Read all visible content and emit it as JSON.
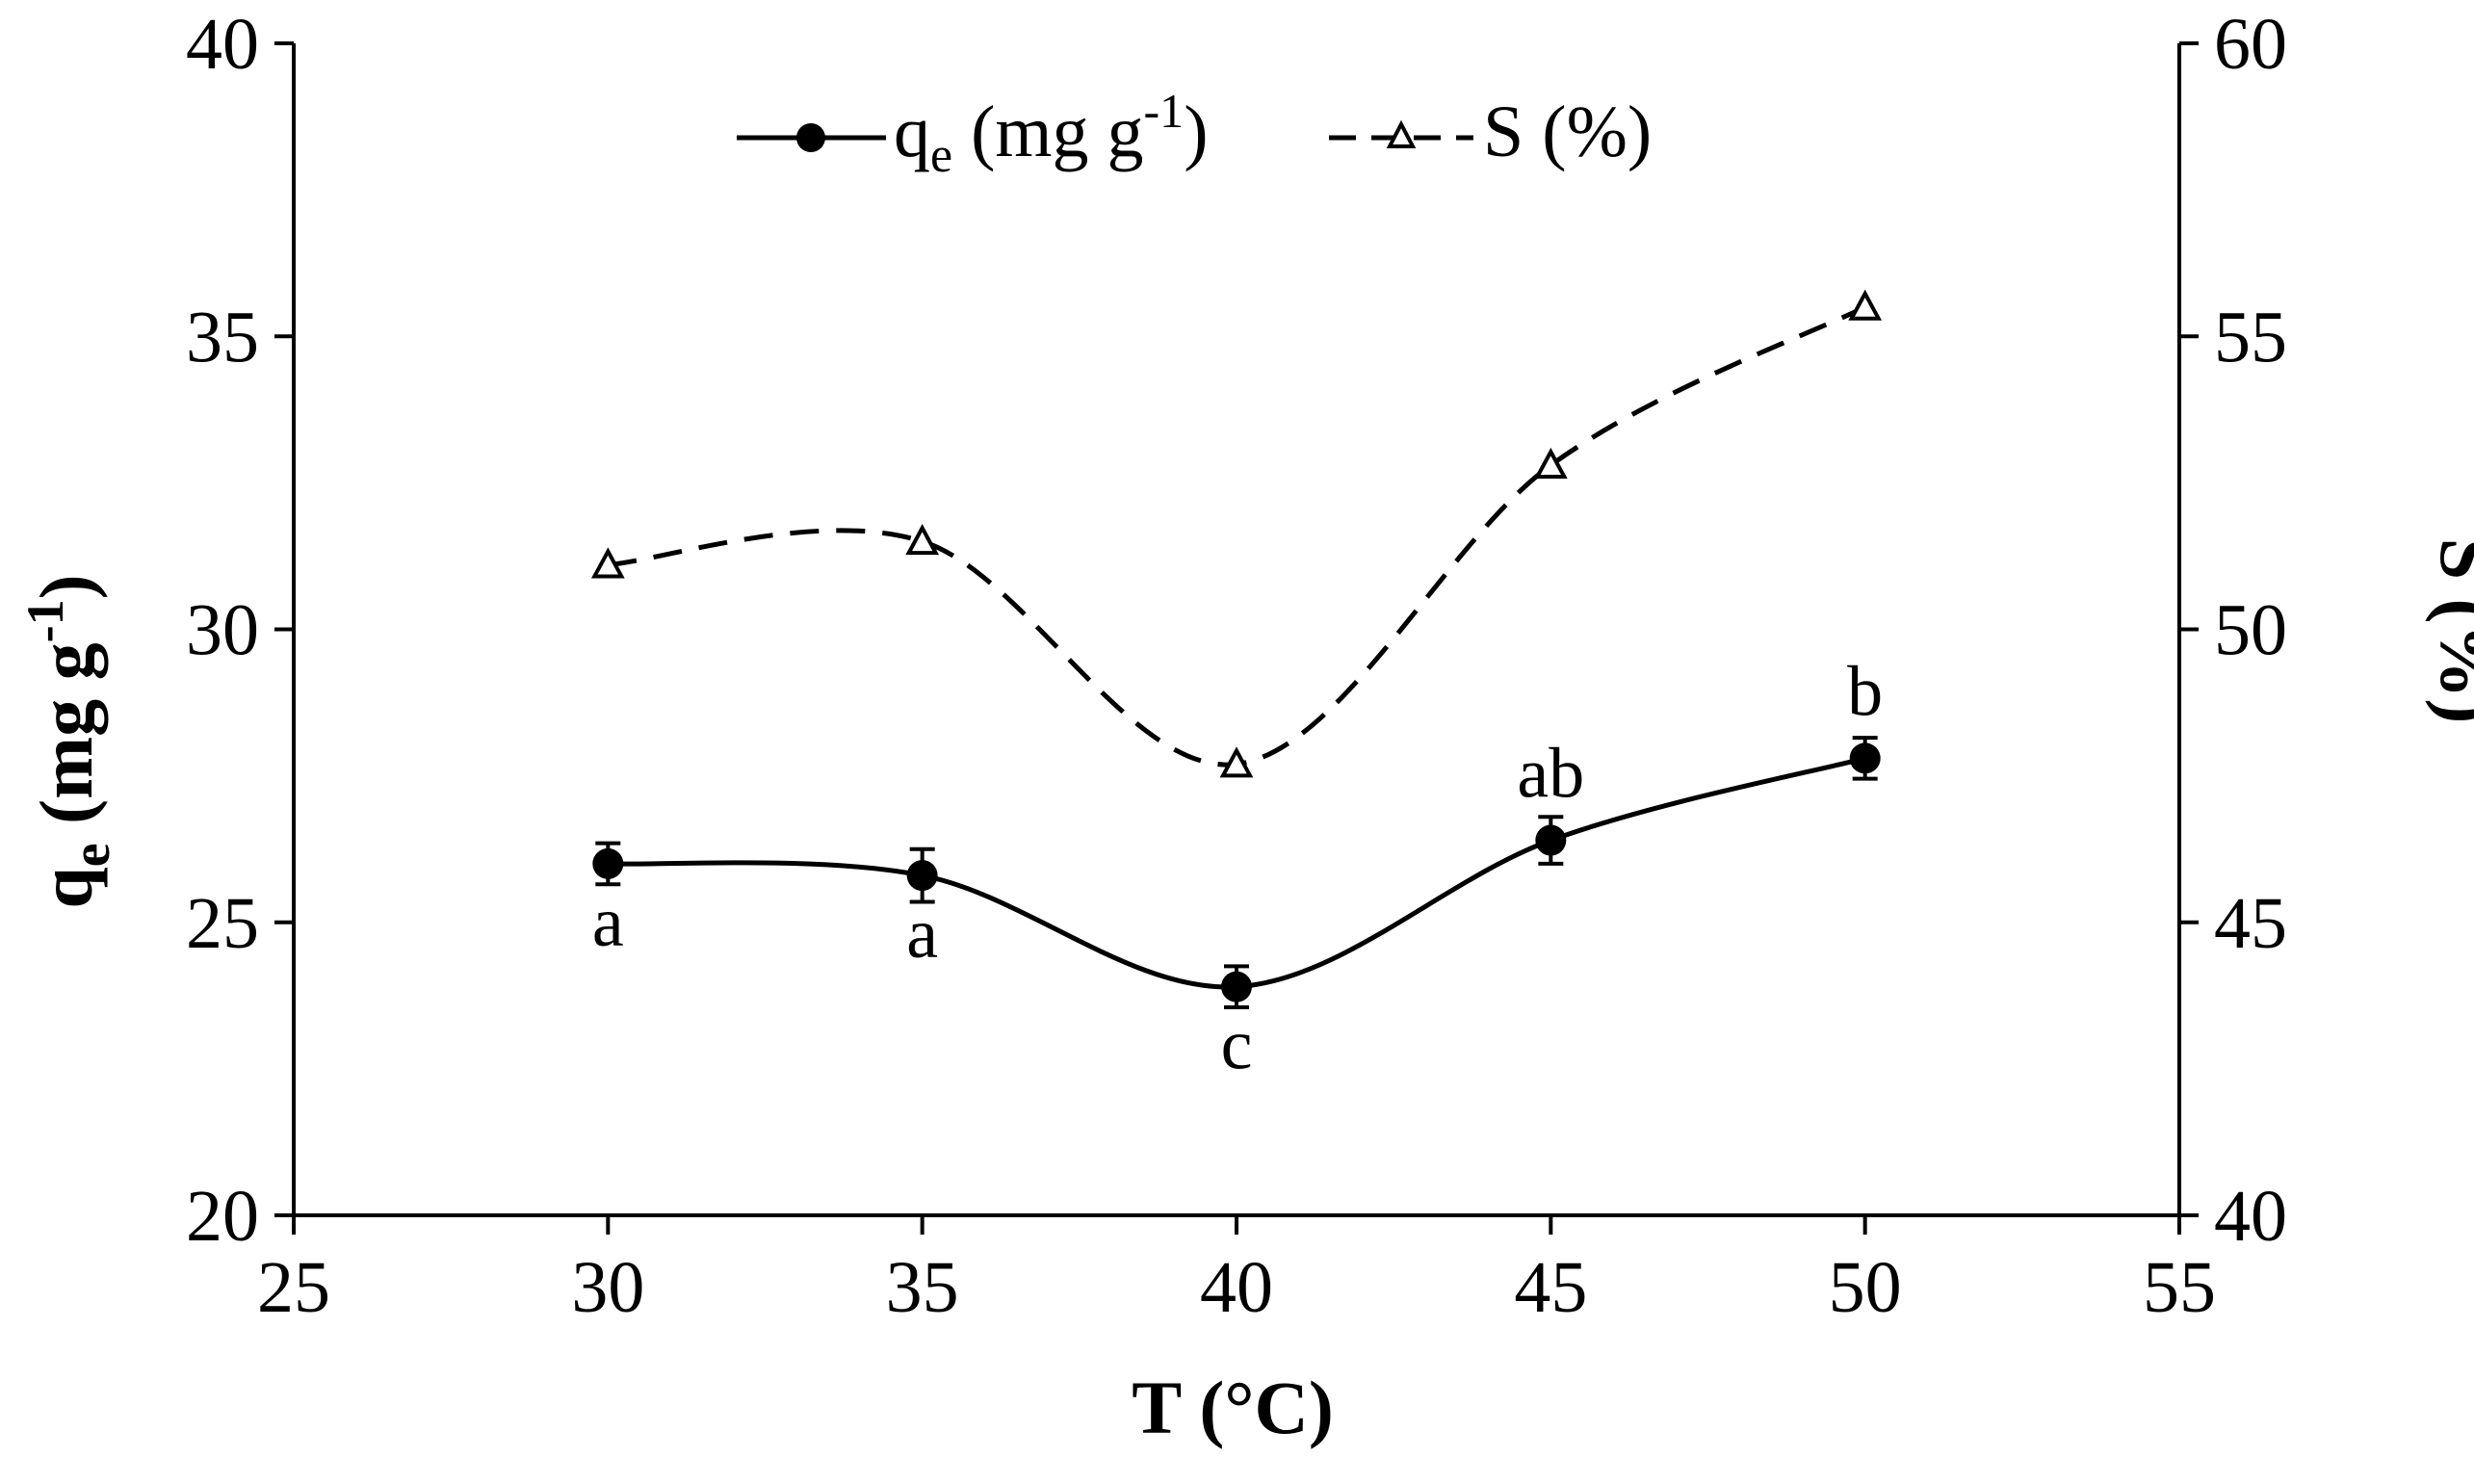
{
  "chart_data": {
    "type": "line",
    "title": "",
    "xlabel": "T (°C)",
    "ylabel": {
      "main": "q",
      "sub": "e",
      "rest": " (mg g",
      "sup": "-1",
      "close": ")"
    },
    "y2label": "S (%)",
    "xlim": [
      25,
      55
    ],
    "ylim": [
      20,
      40
    ],
    "y2lim": [
      40,
      60
    ],
    "xticks": [
      "25",
      "30",
      "35",
      "40",
      "45",
      "50",
      "55"
    ],
    "yticks": [
      "20",
      "25",
      "30",
      "35",
      "40"
    ],
    "y2ticks": [
      "40",
      "45",
      "50",
      "55",
      "60"
    ],
    "x": [
      30,
      35,
      40,
      45,
      50
    ],
    "series": [
      {
        "name": "qe (mg g-1)",
        "axis": "left",
        "values": [
          26.0,
          25.8,
          23.9,
          26.4,
          27.8
        ],
        "errors": [
          0.35,
          0.45,
          0.35,
          0.4,
          0.35
        ],
        "labels": [
          "a",
          "a",
          "c",
          "ab",
          "b"
        ],
        "label_pos": [
          "below",
          "below",
          "below",
          "above",
          "above"
        ],
        "line": "solid",
        "marker": "filled-circle",
        "color": "#000000"
      },
      {
        "name": "S (%)",
        "axis": "right",
        "values": [
          51.1,
          51.5,
          47.7,
          52.8,
          55.5
        ],
        "line": "dashed",
        "marker": "open-triangle",
        "color": "#000000"
      }
    ],
    "legend": {
      "position": "top-center",
      "qe": {
        "main": "q",
        "sub": "e",
        "rest": " (mg g",
        "sup": "-1",
        "close": ")"
      },
      "s": "S (%)"
    }
  }
}
